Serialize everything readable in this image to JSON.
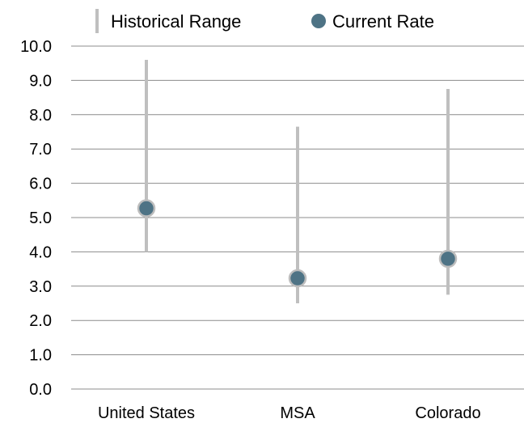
{
  "chart_data": {
    "type": "range-dot",
    "categories": [
      "United States",
      "MSA",
      "Colorado"
    ],
    "series": [
      {
        "name": "Historical Range",
        "low": [
          4.0,
          2.5,
          2.75
        ],
        "high": [
          9.6,
          7.65,
          8.75
        ]
      },
      {
        "name": "Current Rate",
        "values": [
          5.27,
          3.23,
          3.8
        ]
      }
    ],
    "y_ticks": [
      "0.0",
      "1.0",
      "2.0",
      "3.0",
      "4.0",
      "5.0",
      "6.0",
      "7.0",
      "8.0",
      "9.0",
      "10.0"
    ],
    "ylim": [
      0,
      10
    ],
    "grid": true,
    "legend_position": "top",
    "colors": {
      "range": "#bfbfbf",
      "dot": "#4e7385",
      "dot_stroke": "#bdbdbd",
      "grid": "#8c8c8c"
    }
  }
}
